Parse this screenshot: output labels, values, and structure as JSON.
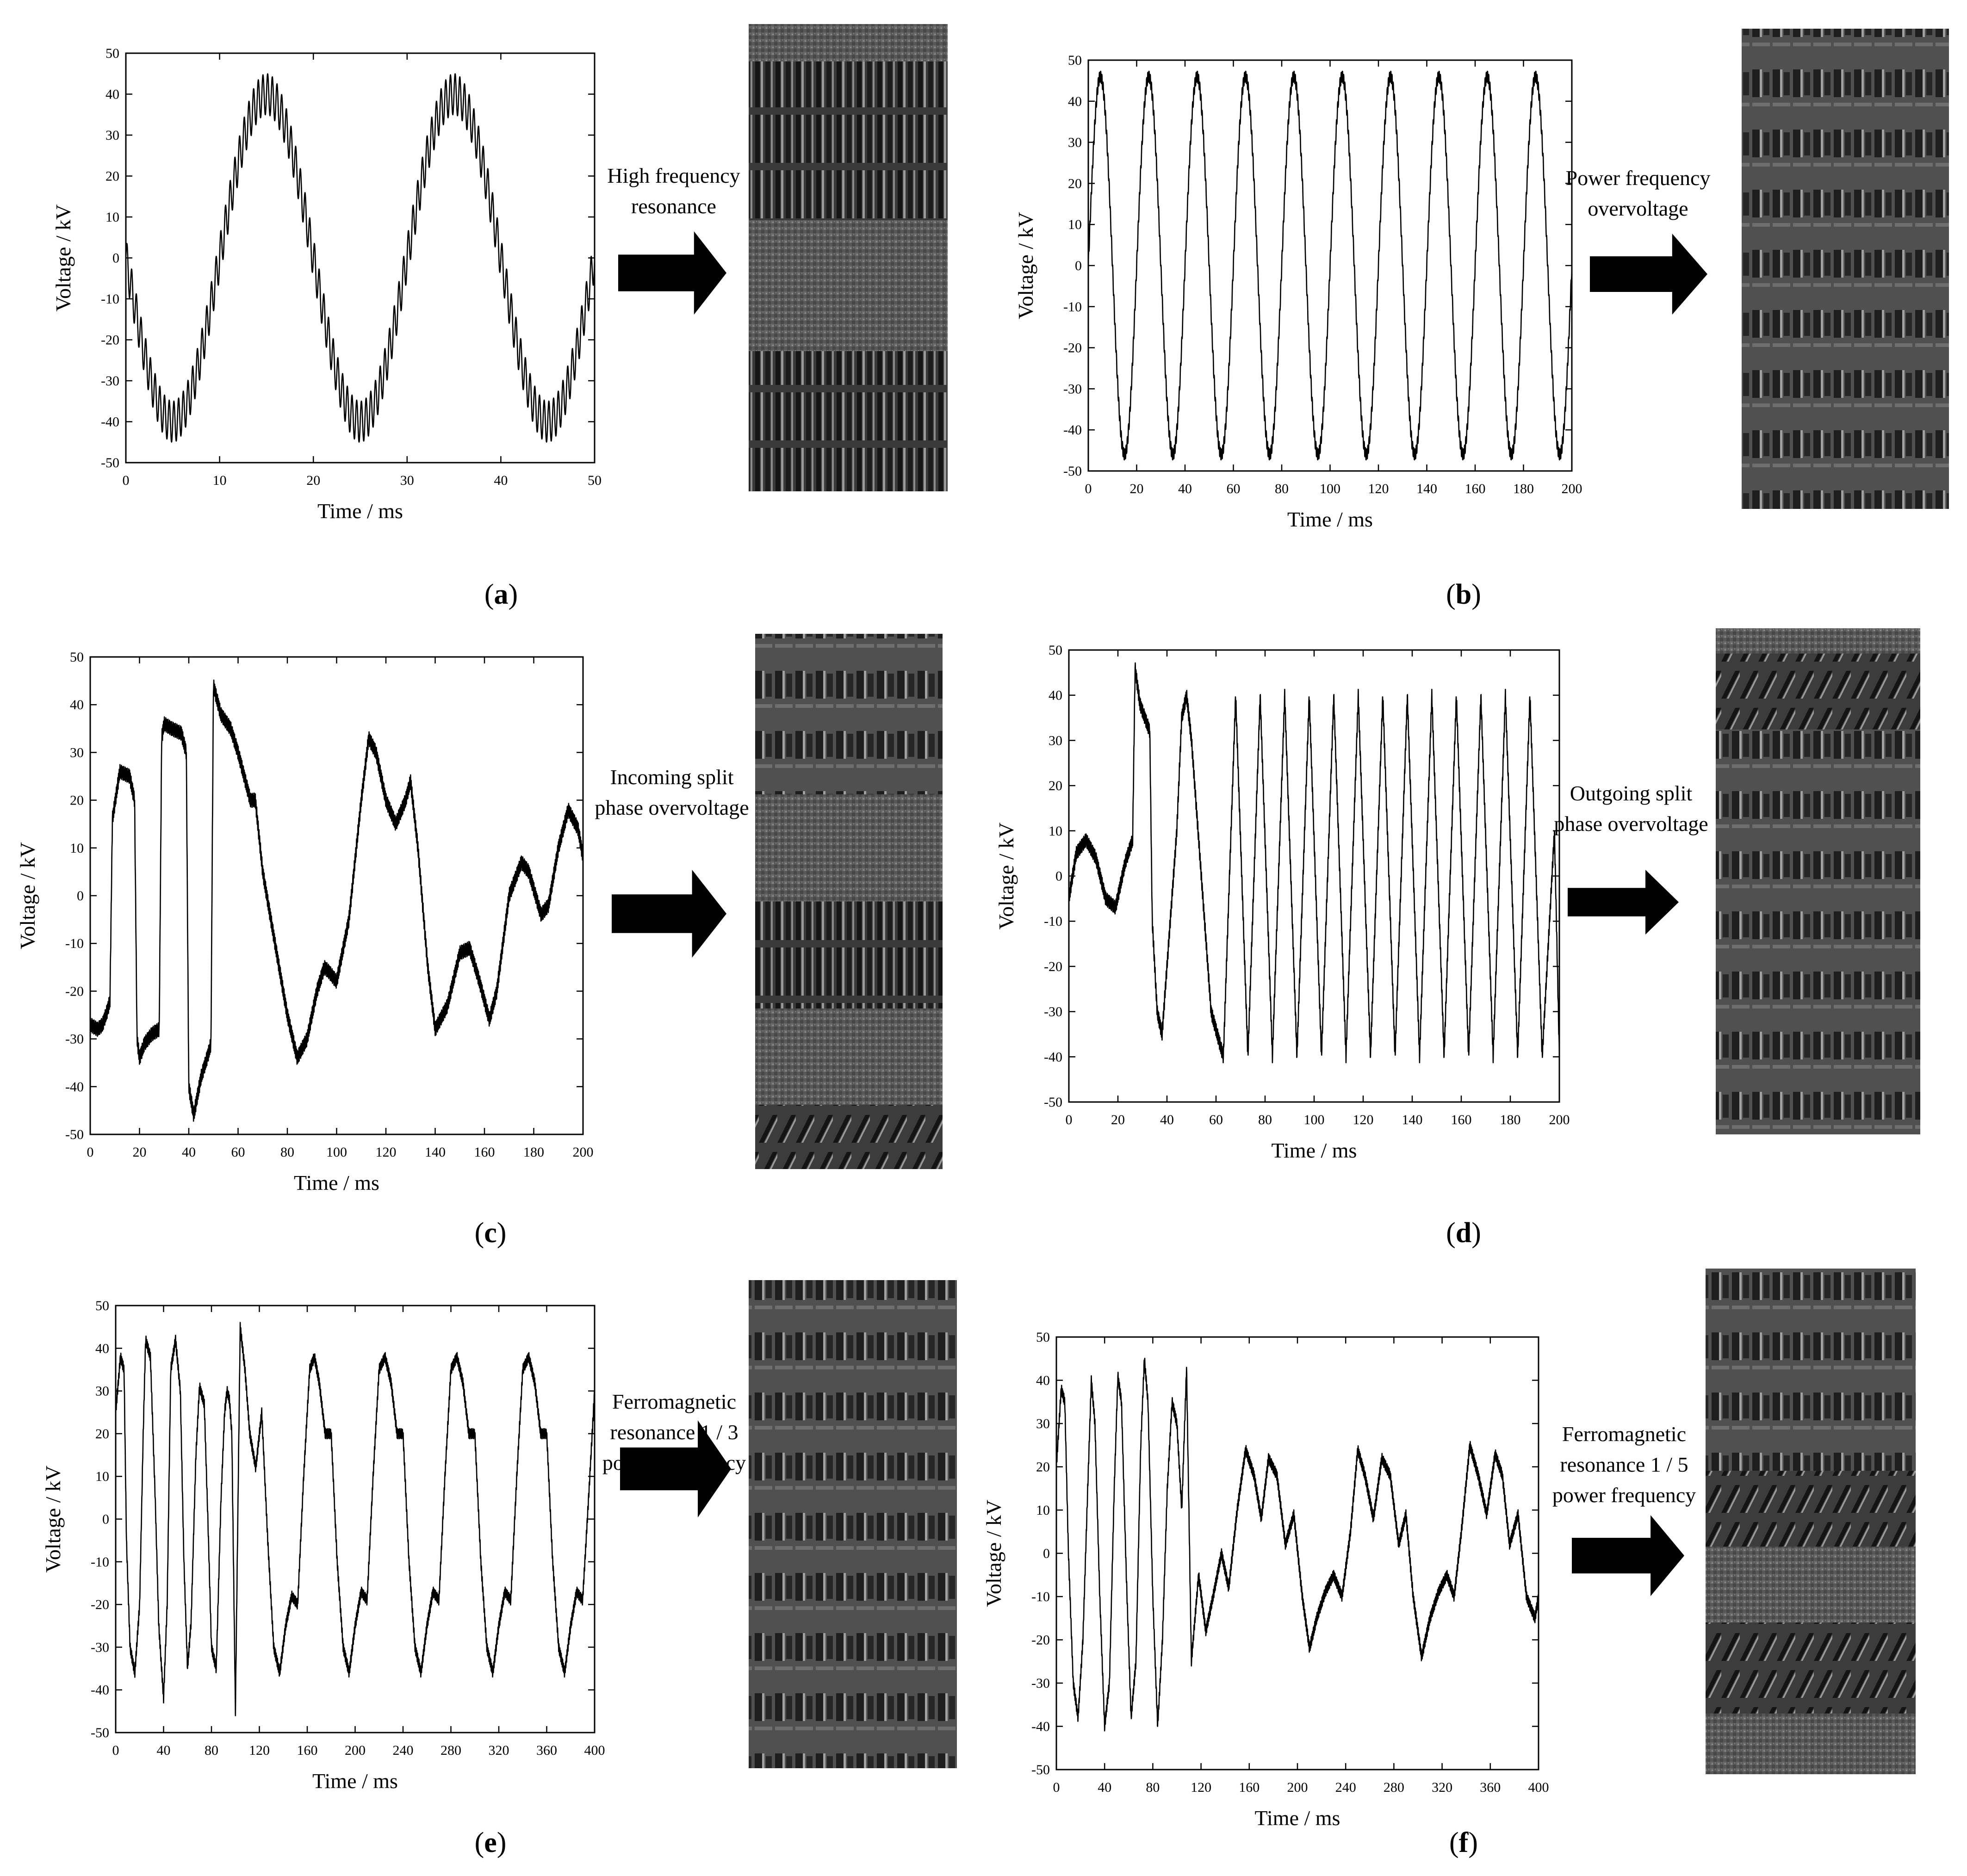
{
  "chart_data": [
    {
      "id": "a",
      "type": "line",
      "caption": "a",
      "label_lines": [
        "High frequency",
        "resonance"
      ],
      "xlabel": "Time / ms",
      "ylabel": "Voltage / kV",
      "xlim": [
        0,
        50
      ],
      "ylim": [
        -50,
        50
      ],
      "xticks": [
        0,
        10,
        20,
        30,
        40,
        50
      ],
      "yticks": [
        -50,
        -40,
        -30,
        -20,
        -10,
        0,
        10,
        20,
        30,
        40,
        50
      ],
      "grid": false,
      "line_color": "#000000",
      "series": [
        {
          "x": [
            0,
            1,
            2,
            3,
            4,
            5,
            6,
            7,
            8,
            9,
            10,
            11,
            12,
            13,
            14,
            15,
            16,
            17,
            18,
            19,
            20,
            21,
            22,
            23,
            24,
            25,
            26,
            27,
            28,
            29,
            30,
            31,
            32,
            33,
            34,
            35,
            36,
            37,
            38,
            39,
            40,
            41,
            42,
            43,
            44,
            45,
            46,
            47,
            48,
            49,
            50
          ],
          "y": [
            0,
            -15,
            -26,
            -35,
            -39,
            -40,
            -38,
            -33,
            -25,
            -13,
            0,
            13,
            25,
            33,
            38,
            40,
            38,
            33,
            25,
            13,
            0,
            -13,
            -25,
            -33,
            -38,
            -40,
            -38,
            -33,
            -25,
            -13,
            0,
            13,
            25,
            33,
            38,
            40,
            38,
            33,
            25,
            13,
            0,
            -13,
            -25,
            -33,
            -38,
            -40,
            -38,
            -33,
            -25,
            -13,
            5
          ]
        }
      ],
      "ripple": {
        "amplitude_kV": 5,
        "period_ms": 0.5
      }
    },
    {
      "id": "b",
      "type": "line",
      "caption": "b",
      "label_lines": [
        "Power frequency",
        "overvoltage"
      ],
      "xlabel": "Time / ms",
      "ylabel": "Voltage / kV",
      "xlim": [
        0,
        200
      ],
      "ylim": [
        -50,
        50
      ],
      "xticks": [
        0,
        20,
        40,
        60,
        80,
        100,
        120,
        140,
        160,
        180,
        200
      ],
      "yticks": [
        -50,
        -40,
        -30,
        -20,
        -10,
        0,
        10,
        20,
        30,
        40,
        50
      ],
      "grid": false,
      "line_color": "#000000",
      "series": [
        {
          "x": [
            0,
            5,
            10,
            15,
            20,
            25,
            30,
            35,
            40,
            45,
            50,
            55,
            60,
            65,
            70,
            75,
            80,
            85,
            90,
            95,
            100,
            105,
            110,
            115,
            120,
            125,
            130,
            135,
            140,
            145,
            150,
            155,
            160,
            165,
            170,
            175,
            180,
            185,
            190,
            195,
            200
          ],
          "y": [
            0,
            46,
            0,
            -46,
            0,
            46,
            0,
            -46,
            0,
            46,
            0,
            -46,
            0,
            46,
            0,
            -46,
            0,
            46,
            0,
            -46,
            0,
            46,
            0,
            -46,
            0,
            46,
            0,
            -46,
            0,
            46,
            0,
            -46,
            0,
            46,
            0,
            -46,
            0,
            46,
            0,
            -46,
            0
          ]
        }
      ],
      "curve_shape": "sine",
      "ripple": {
        "amplitude_kV": 1.5,
        "period_ms": 0.5
      }
    },
    {
      "id": "c",
      "type": "line",
      "caption": "c",
      "label_lines": [
        "Incoming split",
        "phase overvoltage"
      ],
      "xlabel": "Time / ms",
      "ylabel": "Voltage / kV",
      "xlim": [
        0,
        200
      ],
      "ylim": [
        -50,
        50
      ],
      "xticks": [
        0,
        20,
        40,
        60,
        80,
        100,
        120,
        140,
        160,
        180,
        200
      ],
      "yticks": [
        -50,
        -40,
        -30,
        -20,
        -10,
        0,
        10,
        20,
        30,
        40,
        50
      ],
      "grid": false,
      "line_color": "#000000",
      "series": [
        {
          "x": [
            0,
            3,
            5,
            7,
            8,
            9,
            12,
            16,
            18,
            19,
            20,
            22,
            25,
            28,
            29,
            30,
            33,
            37,
            39,
            40,
            42,
            45,
            48,
            49,
            50,
            53,
            57,
            60,
            63,
            65,
            67,
            70,
            75,
            80,
            84,
            88,
            92,
            95,
            97,
            100,
            105,
            110,
            113,
            116,
            120,
            124,
            128,
            130,
            133,
            137,
            140,
            145,
            150,
            154,
            158,
            162,
            165,
            170,
            175,
            178,
            183,
            186,
            190,
            194,
            198,
            200
          ],
          "y": [
            -27,
            -28,
            -27,
            -24,
            -22,
            16,
            26,
            25,
            20,
            -30,
            -34,
            -31,
            -29,
            -28,
            33,
            36,
            35,
            34,
            30,
            -40,
            -46,
            -38,
            -33,
            -31,
            44,
            38,
            35,
            30,
            24,
            20,
            20,
            5,
            -10,
            -25,
            -34,
            -30,
            -20,
            -15,
            -16,
            -18,
            -5,
            20,
            33,
            30,
            20,
            15,
            20,
            24,
            10,
            -15,
            -28,
            -23,
            -12,
            -11,
            -18,
            -26,
            -20,
            0,
            7,
            5,
            -4,
            -2,
            10,
            18,
            14,
            8
          ]
        }
      ],
      "ripple": {
        "amplitude_kV": 1.5,
        "period_ms": 0.3
      }
    },
    {
      "id": "d",
      "type": "line",
      "caption": "d",
      "label_lines": [
        "Outgoing split",
        "phase overvoltage"
      ],
      "xlabel": "Time / ms",
      "ylabel": "Voltage / kV",
      "xlim": [
        0,
        200
      ],
      "ylim": [
        -50,
        50
      ],
      "xticks": [
        0,
        20,
        40,
        60,
        80,
        100,
        120,
        140,
        160,
        180,
        200
      ],
      "yticks": [
        -50,
        -40,
        -30,
        -20,
        -10,
        0,
        10,
        20,
        30,
        40,
        50
      ],
      "grid": false,
      "line_color": "#000000",
      "series": [
        {
          "x": [
            0,
            3,
            7,
            11,
            15,
            19,
            23,
            26,
            27,
            29,
            31,
            33,
            34,
            36,
            38,
            40,
            42,
            44,
            46,
            48,
            50,
            54,
            58,
            63,
            68,
            73,
            78,
            83,
            88,
            93,
            98,
            103,
            108,
            113,
            118,
            123,
            128,
            133,
            138,
            143,
            148,
            153,
            158,
            163,
            168,
            173,
            178,
            183,
            188,
            193,
            198,
            200
          ],
          "y": [
            -5,
            5,
            8,
            4,
            -5,
            -7,
            3,
            8,
            46,
            38,
            35,
            32,
            -10,
            -30,
            -35,
            -20,
            -5,
            10,
            35,
            40,
            30,
            0,
            -30,
            -40,
            40,
            -40,
            40,
            -40,
            40,
            -40,
            40,
            -40,
            40,
            -40,
            40,
            -40,
            40,
            -40,
            40,
            -40,
            40,
            -40,
            40,
            -40,
            40,
            -40,
            40,
            -40,
            40,
            -40,
            10,
            -40
          ]
        }
      ],
      "ripple": {
        "amplitude_kV": 1.5,
        "period_ms": 0.3
      }
    },
    {
      "id": "e",
      "type": "line",
      "caption": "e",
      "label_lines": [
        "Ferromagnetic",
        "resonance 1 / 3",
        "power frequency"
      ],
      "xlabel": "Time / ms",
      "ylabel": "Voltage / kV",
      "xlim": [
        0,
        400
      ],
      "ylim": [
        -50,
        50
      ],
      "xticks": [
        0,
        40,
        80,
        120,
        160,
        200,
        240,
        280,
        320,
        360,
        400
      ],
      "yticks": [
        -50,
        -40,
        -30,
        -20,
        -10,
        0,
        10,
        20,
        30,
        40,
        50
      ],
      "grid": false,
      "line_color": "#000000",
      "series": [
        {
          "x": [
            0,
            4,
            7,
            9,
            12,
            16,
            20,
            23,
            25,
            29,
            33,
            36,
            40,
            43,
            46,
            50,
            54,
            57,
            60,
            63,
            67,
            70,
            74,
            77,
            80,
            84,
            88,
            91,
            93,
            95,
            97,
            100,
            104,
            108,
            112,
            117,
            122,
            127,
            132,
            137,
            142,
            147,
            152,
            157,
            162,
            166,
            170,
            175,
            180,
            185,
            190,
            195,
            200,
            205,
            210,
            215,
            220,
            225,
            230,
            235,
            240,
            245,
            250,
            255,
            260,
            265,
            270,
            275,
            280,
            285,
            290,
            295,
            300,
            305,
            310,
            315,
            320,
            325,
            330,
            335,
            340,
            345,
            350,
            355,
            360,
            365,
            370,
            375,
            380,
            385,
            390,
            395,
            400
          ],
          "y": [
            25,
            38,
            35,
            -5,
            -30,
            -36,
            -20,
            20,
            42,
            38,
            5,
            -25,
            -42,
            -20,
            35,
            42,
            30,
            -10,
            -35,
            -24,
            15,
            31,
            27,
            0,
            -30,
            -35,
            5,
            25,
            30,
            28,
            20,
            -45,
            45,
            35,
            20,
            12,
            25,
            -5,
            -30,
            -36,
            -25,
            -18,
            -20,
            10,
            35,
            38,
            32,
            20,
            20,
            -10,
            -30,
            -36,
            -25,
            -17,
            -19,
            10,
            35,
            38,
            32,
            20,
            20,
            -10,
            -30,
            -36,
            -25,
            -17,
            -19,
            10,
            35,
            38,
            32,
            20,
            20,
            -10,
            -30,
            -36,
            -25,
            -17,
            -19,
            10,
            35,
            38,
            32,
            20,
            20,
            -10,
            -30,
            -36,
            -25,
            -17,
            -19,
            5,
            30
          ]
        }
      ],
      "ripple": {
        "amplitude_kV": 1.2,
        "period_ms": 0.6
      }
    },
    {
      "id": "f",
      "type": "line",
      "caption": "f",
      "label_lines": [
        "Ferromagnetic",
        "resonance 1 / 5",
        "power frequency"
      ],
      "xlabel": "Time / ms",
      "ylabel": "Voltage / kV",
      "xlim": [
        0,
        400
      ],
      "ylim": [
        -50,
        50
      ],
      "xticks": [
        0,
        40,
        80,
        120,
        160,
        200,
        240,
        280,
        320,
        360,
        400
      ],
      "yticks": [
        -50,
        -40,
        -30,
        -20,
        -10,
        0,
        10,
        20,
        30,
        40,
        50
      ],
      "grid": false,
      "line_color": "#000000",
      "series": [
        {
          "x": [
            0,
            4,
            7,
            10,
            14,
            18,
            22,
            26,
            29,
            32,
            36,
            40,
            44,
            48,
            51,
            54,
            58,
            62,
            66,
            70,
            73,
            76,
            80,
            84,
            88,
            92,
            96,
            100,
            104,
            108,
            112,
            118,
            124,
            130,
            137,
            143,
            150,
            157,
            164,
            170,
            176,
            183,
            190,
            197,
            204,
            210,
            216,
            223,
            230,
            237,
            244,
            250,
            256,
            263,
            270,
            277,
            284,
            290,
            296,
            303,
            310,
            317,
            324,
            330,
            336,
            343,
            350,
            357,
            364,
            370,
            376,
            383,
            390,
            397,
            400
          ],
          "y": [
            20,
            38,
            35,
            0,
            -30,
            -38,
            -20,
            15,
            40,
            30,
            -10,
            -40,
            -30,
            15,
            41,
            35,
            -5,
            -38,
            -25,
            25,
            45,
            35,
            -10,
            -40,
            -20,
            15,
            35,
            30,
            10,
            43,
            -25,
            -5,
            -18,
            -10,
            0,
            -8,
            10,
            24,
            18,
            8,
            22,
            18,
            2,
            9,
            -10,
            -22,
            -15,
            -9,
            -5,
            -10,
            5,
            24,
            18,
            8,
            22,
            18,
            2,
            9,
            -10,
            -24,
            -15,
            -9,
            -5,
            -10,
            5,
            25,
            18,
            9,
            23,
            18,
            2,
            9,
            -10,
            -15,
            -10
          ]
        }
      ],
      "ripple": {
        "amplitude_kV": 1.2,
        "period_ms": 0.6
      }
    }
  ],
  "style": {
    "arrow_color": "#000000",
    "image_background": "#5a5a5a",
    "image_stripe_dark": "#2a2a2a",
    "image_stripe_light": "#8a8a8a"
  }
}
